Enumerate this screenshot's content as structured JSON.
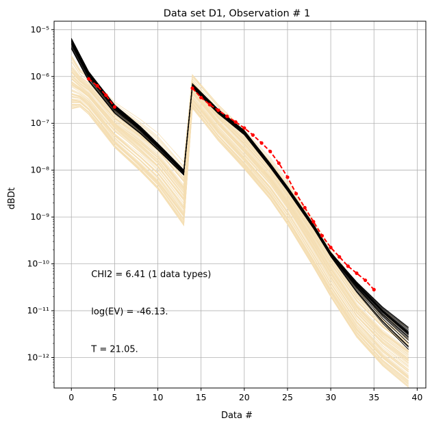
{
  "chart_data": {
    "type": "line",
    "title": "Data set D1, Observation # 1",
    "xlabel": "Data #",
    "ylabel": "dBDt",
    "xlim": [
      -2,
      41
    ],
    "ylim_log10": [
      -12.65,
      -4.82
    ],
    "yscale": "log",
    "xticks": [
      0,
      5,
      10,
      15,
      20,
      25,
      30,
      35,
      40
    ],
    "yticks": [
      {
        "exp": -12,
        "label": "10⁻¹²"
      },
      {
        "exp": -11,
        "label": "10⁻¹¹"
      },
      {
        "exp": -10,
        "label": "10⁻¹⁰"
      },
      {
        "exp": -9,
        "label": "10⁻⁹"
      },
      {
        "exp": -8,
        "label": "10⁻⁸"
      },
      {
        "exp": -7,
        "label": "10⁻⁷"
      },
      {
        "exp": -6,
        "label": "10⁻⁶"
      },
      {
        "exp": -5,
        "label": "10⁻⁵"
      }
    ],
    "grid": true,
    "colors": {
      "prior": "#f5deb3",
      "posterior": "#000000",
      "observed": "#ff0000"
    },
    "series": [
      {
        "name": "prior realizations",
        "segments": [
          {
            "x": [
              0,
              2,
              5,
              8,
              10,
              13
            ],
            "log10y": [
              -6.1,
              -6.35,
              -6.95,
              -7.35,
              -7.65,
              -8.3
            ]
          },
          {
            "x": [
              13,
              14,
              17,
              20,
              23,
              25,
              28,
              30,
              33,
              36,
              39
            ],
            "log10y": [
              -8.3,
              -6.3,
              -6.95,
              -7.5,
              -8.1,
              -8.6,
              -9.45,
              -10.05,
              -10.85,
              -11.4,
              -11.8
            ]
          }
        ],
        "spread_log10": [
          0.35,
          0.4,
          0.45,
          0.45,
          0.5,
          0.55,
          0.5,
          0.5,
          0.55,
          0.6,
          0.6,
          0.6,
          0.6,
          0.55,
          0.5,
          0.45
        ],
        "count": 80
      },
      {
        "name": "posterior realizations",
        "segments": [
          {
            "x": [
              0,
              2,
              5,
              8,
              10,
              13
            ],
            "log10y": [
              -5.3,
              -6.0,
              -6.7,
              -7.15,
              -7.5,
              -8.05
            ]
          },
          {
            "x": [
              13,
              14,
              17,
              20,
              23,
              25,
              28,
              30,
              33,
              36,
              39
            ],
            "log10y": [
              -8.05,
              -6.2,
              -6.75,
              -7.2,
              -7.9,
              -8.4,
              -9.2,
              -9.8,
              -10.5,
              -11.1,
              -11.6
            ]
          }
        ],
        "count": 30
      },
      {
        "name": "observed",
        "x": [
          2,
          3,
          4,
          5,
          14,
          15,
          16,
          17,
          18,
          19,
          20,
          21,
          22,
          23,
          24,
          25,
          26,
          27,
          28,
          29,
          30,
          31,
          32,
          33,
          34,
          35
        ],
        "log10y": [
          -6.05,
          -6.2,
          -6.4,
          -6.65,
          -6.25,
          -6.45,
          -6.6,
          -6.72,
          -6.85,
          -6.97,
          -7.1,
          -7.25,
          -7.42,
          -7.6,
          -7.85,
          -8.15,
          -8.5,
          -8.8,
          -9.1,
          -9.4,
          -9.65,
          -9.85,
          -10.05,
          -10.2,
          -10.35,
          -10.55
        ]
      }
    ],
    "annotations": [
      {
        "text": "CHI2 = 6.41 (1 data types)",
        "x": 2.3,
        "log10y": -10.28
      },
      {
        "text": "log(EV) = -46.13.",
        "x": 2.3,
        "log10y": -11.08
      },
      {
        "text": "T = 21.05.",
        "x": 2.3,
        "log10y": -11.88
      }
    ]
  }
}
